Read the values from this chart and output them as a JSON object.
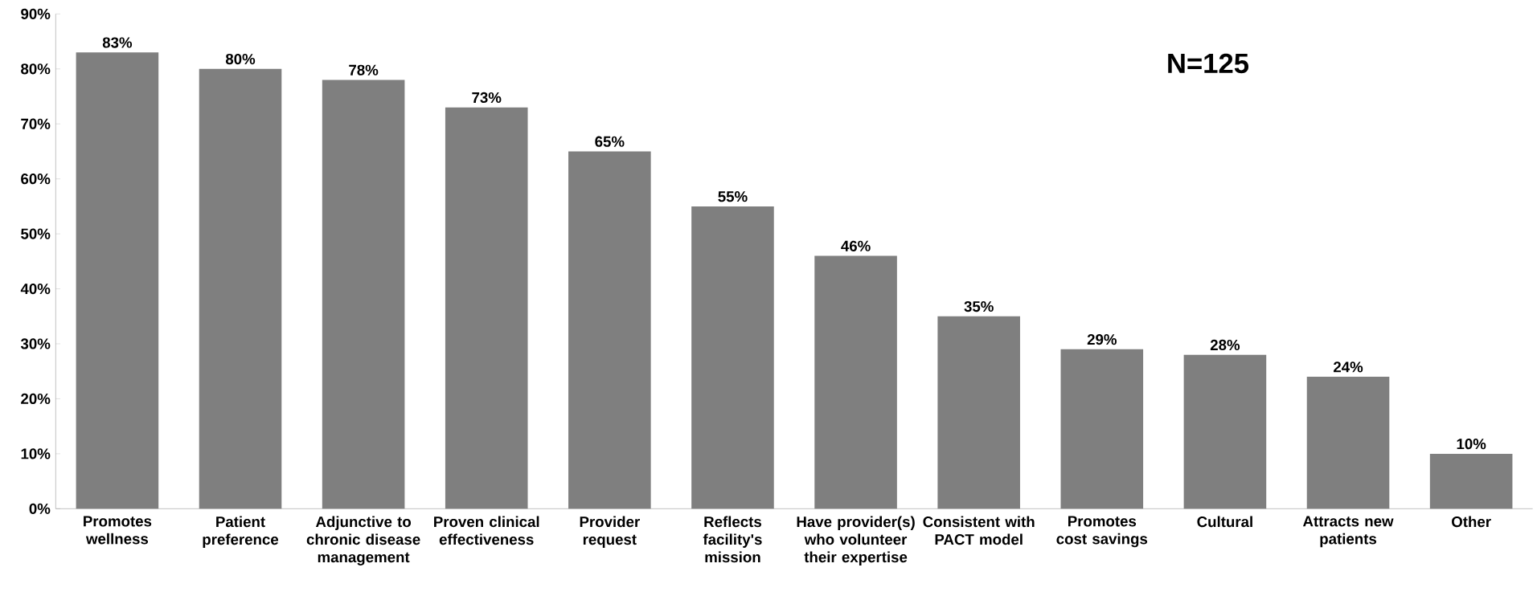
{
  "chart_data": {
    "type": "bar",
    "categories": [
      "Promotes wellness",
      "Patient preference",
      "Adjunctive to chronic disease management",
      "Proven clinical effectiveness",
      "Provider request",
      "Reflects facility's mission",
      "Have provider(s) who volunteer their expertise",
      "Consistent with PACT model",
      "Promotes cost savings",
      "Cultural",
      "Attracts new patients",
      "Other"
    ],
    "values": [
      83,
      80,
      78,
      73,
      65,
      55,
      46,
      35,
      29,
      28,
      24,
      10
    ],
    "value_labels": [
      "83%",
      "80%",
      "78%",
      "73%",
      "65%",
      "55%",
      "46%",
      "35%",
      "29%",
      "28%",
      "24%",
      "10%"
    ],
    "color": "#7f7f7f",
    "ylim": [
      0,
      90
    ],
    "yticks": [
      {
        "value": 0,
        "label": "0%"
      },
      {
        "value": 10,
        "label": "10%"
      },
      {
        "value": 20,
        "label": "20%"
      },
      {
        "value": 30,
        "label": "30%"
      },
      {
        "value": 40,
        "label": "40%"
      },
      {
        "value": 50,
        "label": "50%"
      },
      {
        "value": 60,
        "label": "60%"
      },
      {
        "value": 70,
        "label": "70%"
      },
      {
        "value": 80,
        "label": "80%"
      },
      {
        "value": 90,
        "label": "90%"
      }
    ],
    "annotations": [
      "N=125"
    ]
  }
}
